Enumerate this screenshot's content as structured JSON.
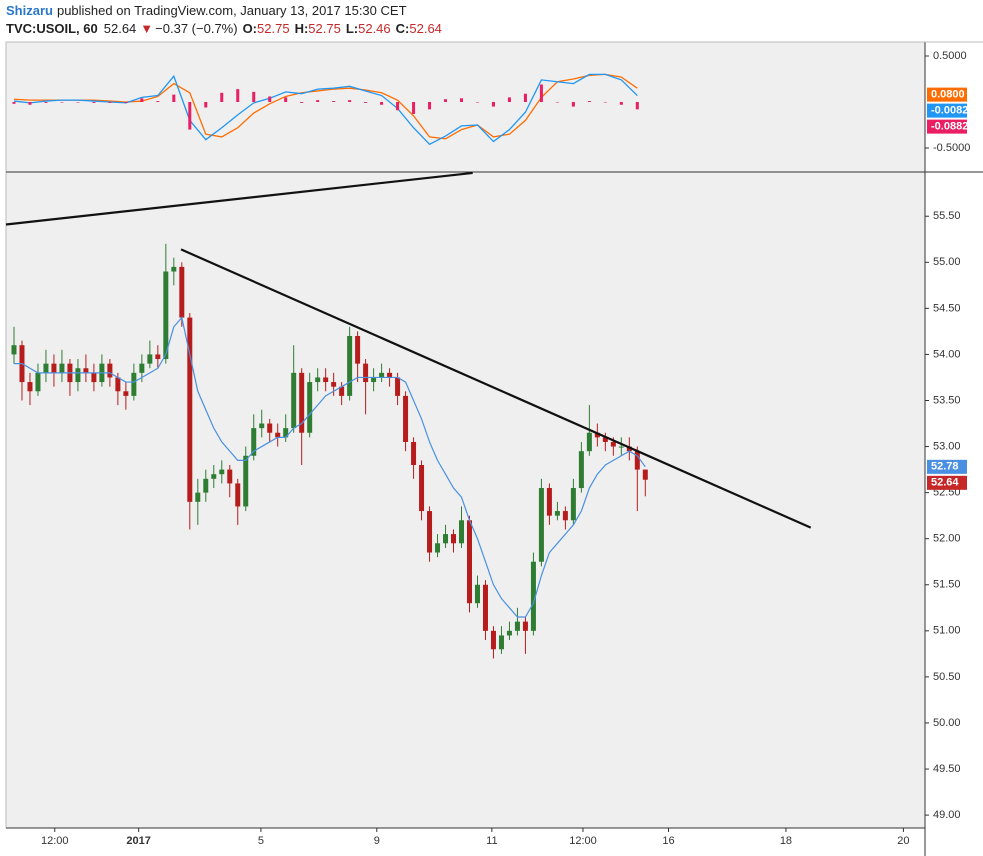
{
  "header": {
    "author": "Shizaru",
    "published": "published on TradingView.com, January 13, 2017 15:30 CET",
    "symbol": "TVC:USOIL, 60",
    "last": "52.64",
    "arrow": "▼",
    "change": "−0.37 (−0.7%)",
    "o_label": "O:",
    "o": "52.75",
    "h_label": "H:",
    "h": "52.75",
    "l_label": "L:",
    "l": "52.46",
    "c_label": "C:",
    "c": "52.64"
  },
  "chart_data": [
    {
      "type": "macd",
      "xlim": [
        0,
        115
      ],
      "ylim": [
        -0.761,
        0.652
      ],
      "yticks": [
        {
          "value": 0.5,
          "label": "0.5000"
        },
        {
          "value": -0.5,
          "label": "-0.5000"
        }
      ],
      "x": [
        1,
        3,
        5,
        7,
        9,
        11,
        13,
        15,
        17,
        19,
        21,
        23,
        25,
        27,
        29,
        31,
        33,
        35,
        37,
        39,
        41,
        43,
        45,
        47,
        49,
        51,
        53,
        55,
        57,
        59,
        61,
        63,
        65,
        67,
        69,
        71,
        73,
        75,
        77,
        79
      ],
      "series": [
        {
          "color": "#ff6d00",
          "values": [
            0.03,
            0.02,
            0.02,
            0.02,
            0.02,
            0.02,
            0.01,
            0.0,
            0.01,
            0.06,
            0.2,
            0.1,
            -0.35,
            -0.38,
            -0.28,
            -0.12,
            -0.02,
            0.06,
            0.1,
            0.12,
            0.14,
            0.15,
            0.13,
            0.1,
            0.02,
            -0.15,
            -0.38,
            -0.4,
            -0.3,
            -0.25,
            -0.38,
            -0.35,
            -0.2,
            0.05,
            0.22,
            0.25,
            0.29,
            0.3,
            0.27,
            0.15
          ]
        },
        {
          "color": "#2196f3",
          "values": [
            0.01,
            -0.01,
            0.01,
            0.02,
            0.02,
            0.01,
            0.0,
            -0.01,
            0.05,
            0.07,
            0.28,
            -0.2,
            -0.41,
            -0.28,
            -0.14,
            -0.01,
            0.04,
            0.11,
            0.09,
            0.14,
            0.15,
            0.17,
            0.12,
            0.07,
            -0.07,
            -0.28,
            -0.46,
            -0.37,
            -0.26,
            -0.25,
            -0.43,
            -0.3,
            -0.11,
            0.24,
            0.22,
            0.2,
            0.3,
            0.3,
            0.24,
            0.07
          ]
        },
        {
          "color": "#e91e63",
          "histogram": true,
          "values": [
            -0.02,
            -0.03,
            -0.01,
            0,
            0,
            -0.01,
            -0.01,
            -0.01,
            0.04,
            0.01,
            0.08,
            -0.3,
            -0.06,
            0.1,
            0.14,
            0.11,
            0.06,
            0.05,
            -0.01,
            0.02,
            0.01,
            0.02,
            -0.01,
            -0.03,
            -0.09,
            -0.13,
            -0.08,
            0.03,
            0.04,
            0,
            -0.05,
            0.05,
            0.09,
            0.19,
            0,
            -0.05,
            0.01,
            0,
            -0.03,
            -0.08
          ]
        }
      ],
      "last_labels": [
        {
          "value": 0.08,
          "label": "0.0800",
          "color": "#ff6d00"
        },
        {
          "value": -0.0082,
          "label": "-0.0082",
          "color": "#2196f3"
        },
        {
          "value": -0.0882,
          "label": "-0.0882",
          "color": "#e91e63"
        }
      ]
    },
    {
      "type": "candlestick",
      "xlim": [
        0,
        115
      ],
      "ylim": [
        48.86,
        55.98
      ],
      "up_color": "#2e7d32",
      "down_color": "#b71c1c",
      "yticks": [
        {
          "value": 55.5,
          "label": "55.50"
        },
        {
          "value": 55,
          "label": "55.00"
        },
        {
          "value": 54.5,
          "label": "54.50"
        },
        {
          "value": 54,
          "label": "54.00"
        },
        {
          "value": 53.5,
          "label": "53.50"
        },
        {
          "value": 53,
          "label": "53.00"
        },
        {
          "value": 52.5,
          "label": "52.50"
        },
        {
          "value": 52,
          "label": "52.00"
        },
        {
          "value": 51.5,
          "label": "51.50"
        },
        {
          "value": 51,
          "label": "51.00"
        },
        {
          "value": 50.5,
          "label": "50.50"
        },
        {
          "value": 50,
          "label": "50.00"
        },
        {
          "value": 49.5,
          "label": "49.50"
        },
        {
          "value": 49,
          "label": "49.00"
        }
      ],
      "xticks": [
        {
          "value": 6.1,
          "label": "12:00"
        },
        {
          "value": 16.6,
          "label": "2017"
        },
        {
          "value": 31.9,
          "label": "5"
        },
        {
          "value": 46.4,
          "label": "9"
        },
        {
          "value": 60.8,
          "label": "11"
        },
        {
          "value": 72.2,
          "label": "12:00"
        },
        {
          "value": 82.9,
          "label": "16"
        },
        {
          "value": 97.6,
          "label": "18"
        },
        {
          "value": 112.3,
          "label": "20"
        }
      ],
      "x": [
        1,
        2,
        3,
        4,
        5,
        6,
        7,
        8,
        9,
        10,
        11,
        12,
        13,
        14,
        15,
        16,
        17,
        18,
        19,
        20,
        21,
        22,
        23,
        24,
        25,
        26,
        27,
        28,
        29,
        30,
        31,
        32,
        33,
        34,
        35,
        36,
        37,
        38,
        39,
        40,
        41,
        42,
        43,
        44,
        45,
        46,
        47,
        48,
        49,
        50,
        51,
        52,
        53,
        54,
        55,
        56,
        57,
        58,
        59,
        60,
        61,
        62,
        63,
        64,
        65,
        66,
        67,
        68,
        69,
        70,
        71,
        72,
        73,
        74,
        75,
        76,
        77,
        78,
        79,
        80
      ],
      "open": [
        54.0,
        54.1,
        53.7,
        53.6,
        53.8,
        53.9,
        53.8,
        53.9,
        53.7,
        53.85,
        53.8,
        53.7,
        53.9,
        53.75,
        53.6,
        53.55,
        53.8,
        53.9,
        54.0,
        53.95,
        54.9,
        54.95,
        54.4,
        52.4,
        52.5,
        52.65,
        52.7,
        52.75,
        52.6,
        52.35,
        52.9,
        53.2,
        53.25,
        53.15,
        53.1,
        53.2,
        53.8,
        53.15,
        53.7,
        53.75,
        53.7,
        53.65,
        53.55,
        54.2,
        53.9,
        53.7,
        53.75,
        53.8,
        53.75,
        53.55,
        53.05,
        52.8,
        52.3,
        51.85,
        51.95,
        52.05,
        51.95,
        52.2,
        51.3,
        51.5,
        51.0,
        50.8,
        50.95,
        51.0,
        51.1,
        51.0,
        51.75,
        52.55,
        52.25,
        52.3,
        52.2,
        52.55,
        52.95,
        53.15,
        53.1,
        53.05,
        53.0,
        53.0,
        52.95,
        52.75
      ],
      "high": [
        54.3,
        54.15,
        53.8,
        53.9,
        54.05,
        54.0,
        54.05,
        53.95,
        53.95,
        54.0,
        53.9,
        54.0,
        53.95,
        53.8,
        53.7,
        53.9,
        54.0,
        54.15,
        54.1,
        55.2,
        55.05,
        55.0,
        54.45,
        52.65,
        52.75,
        52.8,
        52.85,
        52.8,
        52.65,
        53.0,
        53.35,
        53.4,
        53.3,
        53.25,
        53.35,
        54.1,
        53.85,
        53.8,
        53.85,
        53.85,
        53.8,
        53.7,
        54.3,
        54.25,
        53.95,
        53.85,
        53.9,
        53.85,
        53.8,
        53.6,
        53.1,
        52.85,
        52.35,
        52.05,
        52.15,
        52.1,
        52.35,
        52.25,
        51.6,
        51.55,
        51.05,
        51.05,
        51.1,
        51.25,
        51.15,
        51.85,
        52.65,
        52.6,
        52.4,
        52.35,
        52.65,
        53.05,
        53.45,
        53.25,
        53.15,
        53.1,
        53.1,
        53.1,
        53.0,
        52.75
      ],
      "low": [
        53.9,
        53.5,
        53.45,
        53.55,
        53.7,
        53.65,
        53.7,
        53.55,
        53.6,
        53.7,
        53.6,
        53.65,
        53.65,
        53.45,
        53.4,
        53.5,
        53.7,
        53.85,
        53.85,
        53.9,
        54.75,
        54.3,
        52.1,
        52.15,
        52.4,
        52.55,
        52.6,
        52.45,
        52.15,
        52.3,
        52.85,
        53.1,
        53.05,
        53.0,
        53.05,
        53.15,
        52.8,
        53.1,
        53.6,
        53.6,
        53.55,
        53.45,
        53.5,
        53.7,
        53.35,
        53.6,
        53.7,
        53.65,
        53.45,
        52.95,
        52.65,
        52.2,
        51.75,
        51.8,
        51.9,
        51.85,
        51.9,
        51.2,
        51.25,
        50.9,
        50.7,
        50.75,
        50.9,
        50.95,
        50.75,
        50.95,
        51.7,
        52.15,
        52.2,
        52.1,
        52.15,
        52.5,
        52.9,
        53.0,
        52.95,
        52.9,
        52.9,
        52.85,
        52.3,
        52.46
      ],
      "close": [
        54.1,
        53.7,
        53.6,
        53.8,
        53.9,
        53.8,
        53.9,
        53.7,
        53.85,
        53.8,
        53.7,
        53.9,
        53.75,
        53.6,
        53.55,
        53.8,
        53.9,
        54.0,
        53.95,
        54.9,
        54.95,
        54.4,
        52.4,
        52.5,
        52.65,
        52.7,
        52.75,
        52.6,
        52.35,
        52.9,
        53.2,
        53.25,
        53.15,
        53.1,
        53.2,
        53.8,
        53.15,
        53.7,
        53.75,
        53.7,
        53.65,
        53.55,
        54.2,
        53.9,
        53.7,
        53.75,
        53.8,
        53.75,
        53.55,
        53.05,
        52.8,
        52.3,
        51.85,
        51.95,
        52.05,
        51.95,
        52.2,
        51.3,
        51.5,
        51.0,
        50.8,
        50.95,
        51.0,
        51.1,
        51.0,
        51.75,
        52.55,
        52.25,
        52.3,
        52.2,
        52.55,
        52.95,
        53.15,
        53.1,
        53.05,
        53.0,
        53.0,
        52.95,
        52.75,
        52.64
      ],
      "ma": {
        "color": "#4a90e2",
        "values": [
          53.9,
          53.9,
          53.85,
          53.8,
          53.8,
          53.8,
          53.8,
          53.8,
          53.8,
          53.8,
          53.8,
          53.8,
          53.8,
          53.75,
          53.7,
          53.7,
          53.75,
          53.8,
          53.85,
          54.0,
          54.3,
          54.4,
          54.0,
          53.6,
          53.4,
          53.2,
          53.05,
          52.95,
          52.85,
          52.85,
          52.95,
          53.0,
          53.05,
          53.1,
          53.1,
          53.2,
          53.25,
          53.35,
          53.45,
          53.55,
          53.6,
          53.65,
          53.7,
          53.75,
          53.75,
          53.75,
          53.75,
          53.75,
          53.75,
          53.7,
          53.5,
          53.3,
          53.05,
          52.85,
          52.7,
          52.55,
          52.45,
          52.2,
          52.0,
          51.75,
          51.5,
          51.35,
          51.25,
          51.15,
          51.15,
          51.3,
          51.6,
          51.85,
          51.95,
          52.05,
          52.15,
          52.3,
          52.55,
          52.7,
          52.8,
          52.85,
          52.9,
          52.95,
          52.9,
          52.78
        ]
      },
      "trendlines": [
        {
          "x": [
            0,
            58.4
          ],
          "values": [
            55.41,
            55.97
          ]
        },
        {
          "x": [
            21.9,
            100.7
          ],
          "values": [
            55.14,
            52.12
          ]
        }
      ],
      "last_labels": [
        {
          "value": 52.78,
          "label": "52.78",
          "color": "#4a90e2"
        },
        {
          "value": 52.64,
          "label": "52.64",
          "color": "#c62828"
        }
      ]
    }
  ]
}
